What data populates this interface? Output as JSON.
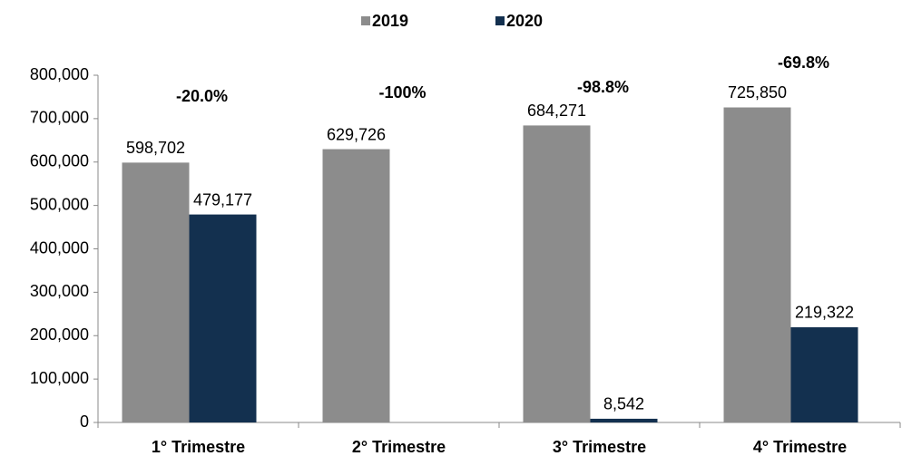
{
  "chart_data": {
    "type": "bar",
    "categories": [
      "1° Trimestre",
      "2° Trimestre",
      "3° Trimestre",
      "4° Trimestre"
    ],
    "series": [
      {
        "name": "2019",
        "color": "#8c8c8c",
        "values": [
          598702,
          629726,
          684271,
          725850
        ],
        "value_labels": [
          "598,702",
          "629,726",
          "684,271",
          "725,850"
        ]
      },
      {
        "name": "2020",
        "color": "#13304f",
        "values": [
          479177,
          null,
          8542,
          219322
        ],
        "value_labels": [
          "479,177",
          null,
          "8,542",
          "219,322"
        ]
      }
    ],
    "annotations": [
      "-20.0%",
      "-100%",
      "-98.8%",
      "-69.8%"
    ],
    "ylim": [
      0,
      800000
    ],
    "yticks": [
      0,
      {
        "value": 100000,
        "label": "100,000"
      },
      {
        "value": 200000,
        "label": "200,000"
      },
      {
        "value": 300000,
        "label": "300,000"
      },
      {
        "value": 400000,
        "label": "400,000"
      },
      {
        "value": 500000,
        "label": "500,000"
      },
      {
        "value": 600000,
        "label": "600,000"
      },
      {
        "value": 700000,
        "label": "700,000"
      },
      {
        "value": 800000,
        "label": "800,000"
      }
    ],
    "grid": false,
    "legend": "top"
  }
}
